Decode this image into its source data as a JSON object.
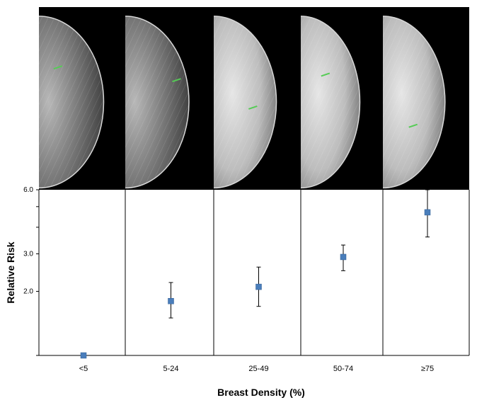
{
  "chart_data": {
    "type": "scatter",
    "xlabel": "Breast Density (%)",
    "ylabel": "Relative Risk",
    "y_scale": "log",
    "ylim": [
      1.0,
      6.0
    ],
    "yticks": [
      "2.0",
      "3.0",
      "6.0"
    ],
    "categories": [
      "<5",
      "5-24",
      "25-49",
      "50-74",
      "≥75"
    ],
    "series": [
      {
        "marker": "square",
        "color": "#4a7ebb",
        "values": [
          1.0,
          1.8,
          2.1,
          2.9,
          4.7
        ],
        "lower": [
          1.0,
          1.5,
          1.7,
          2.5,
          3.6
        ],
        "upper": [
          1.0,
          2.2,
          2.6,
          3.3,
          6.0
        ]
      }
    ],
    "grid": false,
    "legend": "none"
  },
  "images": {
    "count": 5,
    "description_icons": [
      "mammogram-image",
      "mammogram-image",
      "mammogram-image",
      "mammogram-image",
      "mammogram-image"
    ],
    "lesion_marker_color": "#55cc55",
    "background": "#000000"
  }
}
